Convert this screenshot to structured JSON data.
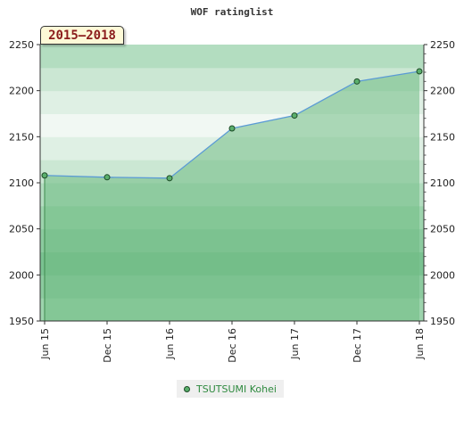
{
  "chart_data": {
    "type": "area",
    "title": "WOF ratinglist",
    "period_label": "2015–2018",
    "x": [
      "Jun 15",
      "Dec 15",
      "Jun 16",
      "Dec 16",
      "Jun 17",
      "Dec 17",
      "Jun 18"
    ],
    "series": [
      {
        "name": "TSUTSUMI Kohei",
        "values": [
          2108,
          2106,
          2105,
          2159,
          2173,
          2210,
          2221
        ]
      }
    ],
    "ylim": [
      1950,
      2250
    ],
    "yticks": [
      1950,
      2000,
      2050,
      2100,
      2150,
      2200,
      2250
    ],
    "y_axis_sides": "both",
    "legend_position": "bottom",
    "grid": false,
    "colors": {
      "line": "#5b9bd5",
      "marker_fill": "#5aaf6c",
      "marker_stroke": "#1c4a26",
      "area_fill": "#6fbb83",
      "band_colors": [
        "#9dd4ad",
        "#8ccb9f",
        "#7ac291",
        "#8ccb9f",
        "#9dd4ad",
        "#b3ddc0",
        "#cbe7d3",
        "#dff0e4",
        "#f1f8f3",
        "#dff0e4",
        "#cbe7d3",
        "#b3ddc0"
      ]
    }
  }
}
